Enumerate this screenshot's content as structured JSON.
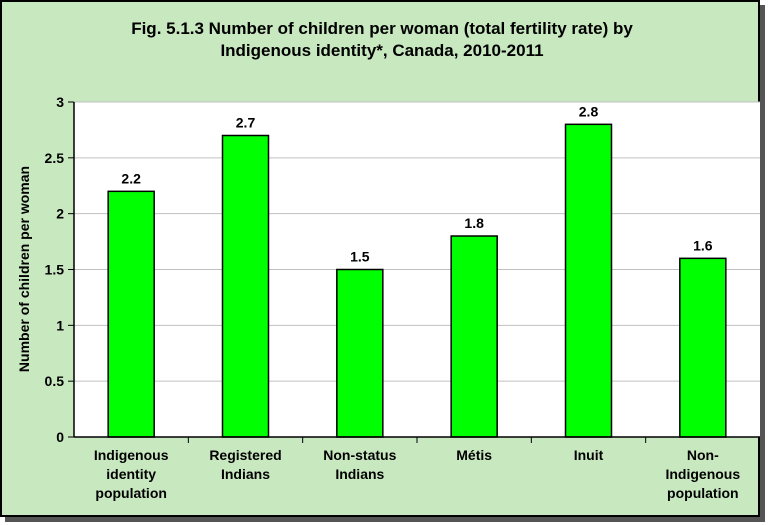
{
  "chart_data": {
    "type": "bar",
    "title_lines": [
      "Fig. 5.1.3 Number of children per woman (total fertility rate) by",
      "Indigenous identity*, Canada, 2010-2011"
    ],
    "ylabel": "Number of children per woman",
    "xlabel": "",
    "ylim": [
      0,
      3
    ],
    "yticks": [
      "0",
      "0.5",
      "1",
      "1.5",
      "2",
      "2.5",
      "3"
    ],
    "ytick_values": [
      0,
      0.5,
      1,
      1.5,
      2,
      2.5,
      3
    ],
    "categories": [
      [
        "Indigenous",
        "identity",
        "population"
      ],
      [
        "Registered",
        "Indians"
      ],
      [
        "Non-status",
        "Indians"
      ],
      [
        "Métis"
      ],
      [
        "Inuit"
      ],
      [
        "Non-",
        "Indigenous",
        "population"
      ]
    ],
    "values": [
      2.2,
      2.7,
      1.5,
      1.8,
      2.8,
      1.6
    ],
    "value_labels": [
      "2.2",
      "2.7",
      "1.5",
      "1.8",
      "2.8",
      "1.6"
    ],
    "grid": true,
    "legend": "none",
    "bar_color": "#00ff00",
    "background_color": "#c8e8c0",
    "plot_background_color": "#ffffff"
  }
}
